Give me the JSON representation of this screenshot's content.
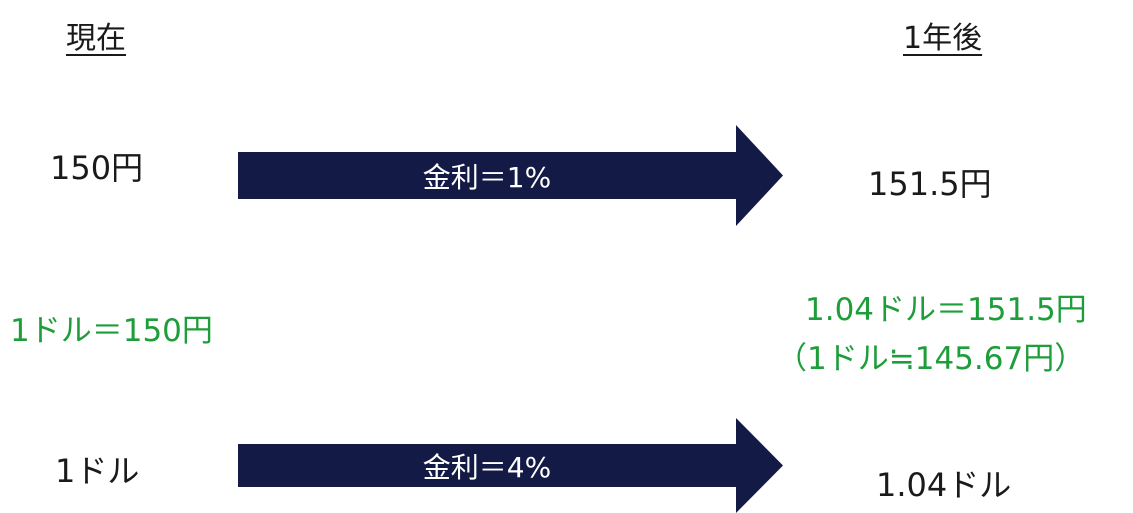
{
  "headers": {
    "now": "現在",
    "later": "1年後"
  },
  "yen": {
    "now": "150円",
    "rate": "金利＝1%",
    "later": "151.5円"
  },
  "exchange": {
    "now": "1ドル＝150円",
    "later_line1": "1.04ドル＝151.5円",
    "later_line2": "（1ドル≒145.67円）"
  },
  "dollar": {
    "now": "1ドル",
    "rate": "金利＝4%",
    "later": "1.04ドル"
  },
  "colors": {
    "arrow": "#141a46",
    "accent_text": "#1e9e3a"
  }
}
